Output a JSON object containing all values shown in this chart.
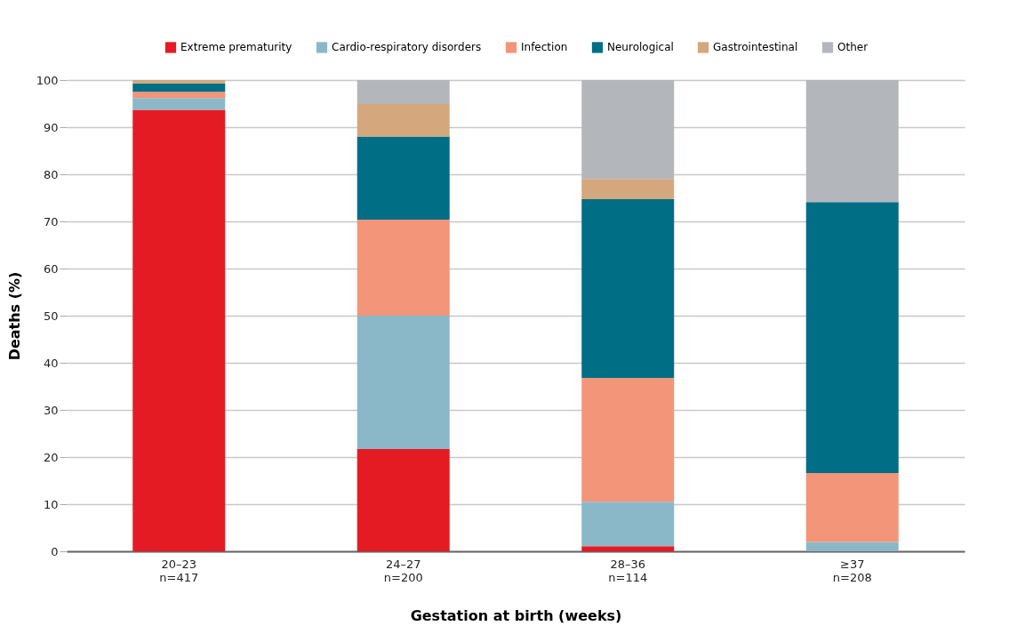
{
  "chart_data": {
    "type": "bar",
    "stacked": true,
    "xlabel": "Gestation at birth (weeks)",
    "ylabel": "Deaths (%)",
    "categories": [
      "20–23\nn=417",
      "24–27\nn=200",
      "28–36\nn=114",
      "≥37\nn=208"
    ],
    "series": [
      {
        "name": "Extreme prematurity",
        "color": "#e51b24",
        "values": [
          93.7,
          21.7,
          1.1,
          0
        ]
      },
      {
        "name": "Cardio-respiratory disorders",
        "color": "#8bb8c8",
        "values": [
          2.5,
          28.3,
          9.4,
          2.0
        ]
      },
      {
        "name": "Infection",
        "color": "#f29579",
        "values": [
          1.3,
          20.4,
          26.3,
          14.6
        ]
      },
      {
        "name": "Neurological",
        "color": "#006e85",
        "values": [
          1.8,
          17.6,
          37.9,
          57.5
        ]
      },
      {
        "name": "Gastrointestinal",
        "color": "#d4a77c",
        "values": [
          0.7,
          6.9,
          4.3,
          0
        ]
      },
      {
        "name": "Other",
        "color": "#b3b7bb",
        "values": [
          0,
          5.1,
          21.0,
          25.9
        ]
      }
    ],
    "ylim": [
      0,
      100
    ],
    "yticks": [
      0,
      10,
      20,
      30,
      40,
      50,
      60,
      70,
      80,
      90,
      100
    ],
    "grid": "y",
    "legend": "top right"
  }
}
